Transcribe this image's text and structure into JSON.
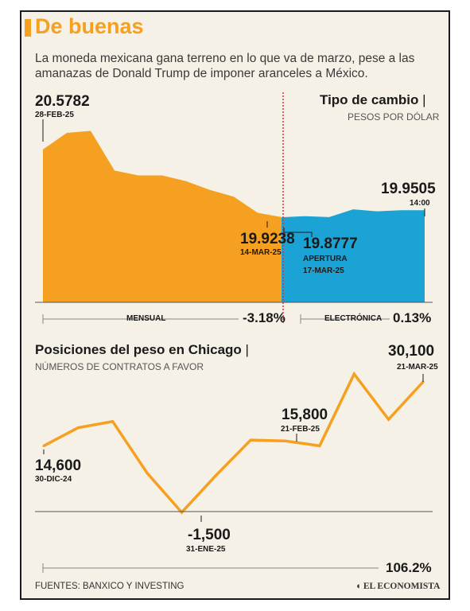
{
  "header": {
    "title": "De buenas",
    "subtitle": "La moneda mexicana gana terreno en lo que va de marzo, pese a las amanazas de Donald Trump de imponer aranceles a México."
  },
  "colors": {
    "accent": "#f5a020",
    "electronic": "#1aa3d4",
    "line": "#f5a020",
    "divider": "#e03030"
  },
  "chart_data": [
    {
      "type": "area",
      "title": "Tipo de cambio",
      "subtitle": "PESOS POR DÓLAR",
      "series": [
        {
          "name": "MENSUAL",
          "points": [
            {
              "x": 0,
              "y": 20.5782
            },
            {
              "x": 1,
              "y": 20.75
            },
            {
              "x": 2,
              "y": 20.77
            },
            {
              "x": 3,
              "y": 20.36
            },
            {
              "x": 4,
              "y": 20.31
            },
            {
              "x": 5,
              "y": 20.31
            },
            {
              "x": 6,
              "y": 20.25
            },
            {
              "x": 7,
              "y": 20.16
            },
            {
              "x": 8,
              "y": 20.09
            },
            {
              "x": 9,
              "y": 19.9238
            },
            {
              "x": 10,
              "y": 19.88
            }
          ]
        },
        {
          "name": "ELECTRÓNICA",
          "points": [
            {
              "x": 10,
              "y": 19.8777
            },
            {
              "x": 11,
              "y": 19.89
            },
            {
              "x": 12,
              "y": 19.88
            },
            {
              "x": 13,
              "y": 19.96
            },
            {
              "x": 14,
              "y": 19.94
            },
            {
              "x": 15,
              "y": 19.95
            },
            {
              "x": 16,
              "y": 19.9505
            }
          ]
        }
      ],
      "ylim": [
        19.0,
        21.3
      ],
      "annotations": [
        {
          "value": "20.5782",
          "date": "28-FEB-25"
        },
        {
          "value": "19.9238",
          "date": "14-MAR-25"
        },
        {
          "value": "19.8777",
          "note": "APERTURA",
          "date": "17-MAR-25"
        },
        {
          "value": "19.9505",
          "date": "14:00"
        }
      ],
      "bars": [
        {
          "label": "MENSUAL",
          "value": "-3.18%"
        },
        {
          "label": "ELECTRÓNICA",
          "value": "0.13%"
        }
      ]
    },
    {
      "type": "line",
      "title": "Posiciones del peso en Chicago",
      "subtitle": "NÚMEROS DE CONTRATOS A FAVOR",
      "series": [
        {
          "values": [
            14600,
            19000,
            20500,
            8000,
            -1500,
            7500,
            16000,
            15800,
            14600,
            32000,
            21000,
            30100
          ]
        }
      ],
      "ylim": [
        -8000,
        45000
      ],
      "annotations": [
        {
          "value": "14,600",
          "date": "30-DIC-24"
        },
        {
          "value": "-1,500",
          "date": "31-ENE-25"
        },
        {
          "value": "15,800",
          "date": "21-FEB-25"
        },
        {
          "value": "30,100",
          "date": "21-MAR-25"
        }
      ],
      "bar": {
        "value": "106.2%"
      }
    }
  ],
  "footer": {
    "source": "FUENTES: BANXICO Y INVESTING",
    "logo": "EL ECONOMISTA"
  }
}
